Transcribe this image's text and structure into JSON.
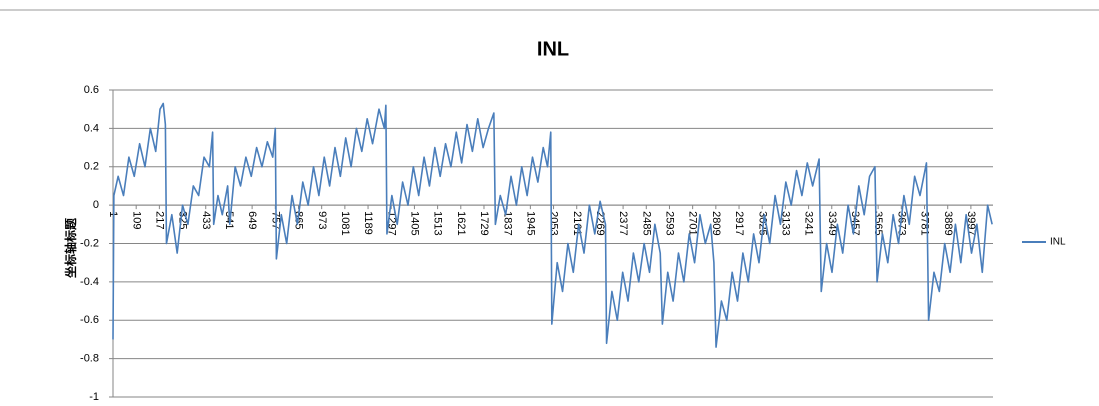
{
  "chart_data": {
    "type": "line",
    "title": "INL",
    "y_label": "坐标轴标题",
    "x": [
      1,
      5,
      25,
      50,
      75,
      100,
      125,
      150,
      175,
      200,
      220,
      235,
      245,
      250,
      275,
      300,
      325,
      350,
      375,
      400,
      425,
      450,
      465,
      470,
      490,
      510,
      535,
      545,
      570,
      595,
      620,
      645,
      670,
      695,
      720,
      745,
      757,
      762,
      785,
      810,
      835,
      860,
      885,
      910,
      935,
      960,
      985,
      1010,
      1035,
      1060,
      1085,
      1110,
      1135,
      1160,
      1185,
      1210,
      1240,
      1265,
      1272,
      1277,
      1300,
      1325,
      1350,
      1375,
      1400,
      1425,
      1450,
      1475,
      1500,
      1525,
      1550,
      1575,
      1600,
      1625,
      1650,
      1675,
      1700,
      1725,
      1750,
      1775,
      1782,
      1805,
      1830,
      1855,
      1880,
      1905,
      1930,
      1955,
      1980,
      2005,
      2025,
      2040,
      2045,
      2070,
      2095,
      2120,
      2145,
      2170,
      2195,
      2220,
      2245,
      2270,
      2295,
      2300,
      2325,
      2350,
      2375,
      2400,
      2425,
      2450,
      2475,
      2500,
      2525,
      2550,
      2560,
      2585,
      2610,
      2635,
      2660,
      2685,
      2710,
      2735,
      2760,
      2785,
      2800,
      2810,
      2835,
      2860,
      2885,
      2910,
      2935,
      2960,
      2985,
      3010,
      3035,
      3060,
      3085,
      3110,
      3135,
      3160,
      3185,
      3210,
      3235,
      3260,
      3290,
      3300,
      3325,
      3350,
      3375,
      3400,
      3425,
      3450,
      3475,
      3500,
      3525,
      3550,
      3560,
      3585,
      3610,
      3635,
      3660,
      3685,
      3710,
      3735,
      3760,
      3790,
      3800,
      3825,
      3850,
      3875,
      3900,
      3925,
      3950,
      3975,
      4000,
      4025,
      4050,
      4075,
      4096
    ],
    "series": [
      {
        "name": "INL",
        "color": "#4a7ebb",
        "values": [
          -0.7,
          0.05,
          0.15,
          0.05,
          0.25,
          0.15,
          0.32,
          0.2,
          0.4,
          0.28,
          0.5,
          0.53,
          0.42,
          -0.2,
          -0.05,
          -0.25,
          0.0,
          -0.1,
          0.1,
          0.05,
          0.25,
          0.2,
          0.38,
          -0.1,
          0.05,
          -0.05,
          0.1,
          -0.1,
          0.2,
          0.1,
          0.25,
          0.15,
          0.3,
          0.2,
          0.33,
          0.25,
          0.4,
          -0.28,
          -0.05,
          -0.2,
          0.05,
          -0.1,
          0.12,
          0.0,
          0.2,
          0.05,
          0.25,
          0.1,
          0.3,
          0.15,
          0.35,
          0.2,
          0.4,
          0.28,
          0.45,
          0.32,
          0.5,
          0.4,
          0.52,
          -0.15,
          0.05,
          -0.1,
          0.12,
          0.0,
          0.2,
          0.05,
          0.25,
          0.1,
          0.3,
          0.15,
          0.32,
          0.2,
          0.38,
          0.22,
          0.42,
          0.28,
          0.45,
          0.3,
          0.4,
          0.48,
          -0.1,
          0.05,
          -0.05,
          0.15,
          0.0,
          0.2,
          0.05,
          0.25,
          0.12,
          0.3,
          0.2,
          0.38,
          -0.62,
          -0.3,
          -0.45,
          -0.2,
          -0.35,
          -0.1,
          -0.25,
          0.0,
          -0.15,
          0.02,
          -0.1,
          -0.72,
          -0.45,
          -0.6,
          -0.35,
          -0.5,
          -0.25,
          -0.4,
          -0.2,
          -0.35,
          -0.1,
          -0.25,
          -0.62,
          -0.35,
          -0.5,
          -0.25,
          -0.4,
          -0.15,
          -0.3,
          -0.05,
          -0.2,
          -0.1,
          -0.3,
          -0.74,
          -0.5,
          -0.6,
          -0.35,
          -0.5,
          -0.25,
          -0.4,
          -0.15,
          -0.3,
          -0.05,
          -0.2,
          0.05,
          -0.1,
          0.12,
          0.0,
          0.18,
          0.05,
          0.22,
          0.1,
          0.24,
          -0.45,
          -0.2,
          -0.35,
          -0.1,
          -0.25,
          0.0,
          -0.15,
          0.1,
          -0.05,
          0.15,
          0.2,
          -0.4,
          -0.15,
          -0.3,
          -0.05,
          -0.2,
          0.05,
          -0.1,
          0.15,
          0.05,
          0.22,
          -0.6,
          -0.35,
          -0.45,
          -0.2,
          -0.35,
          -0.1,
          -0.3,
          -0.05,
          -0.25,
          -0.1,
          -0.35,
          0.0,
          -0.1
        ]
      }
    ],
    "xlim": [
      1,
      4100
    ],
    "xticks": [
      1,
      109,
      217,
      325,
      433,
      541,
      649,
      757,
      865,
      973,
      1081,
      1189,
      1297,
      1405,
      1513,
      1621,
      1729,
      1837,
      1945,
      2053,
      2161,
      2269,
      2377,
      2485,
      2593,
      2701,
      2809,
      2917,
      3025,
      3133,
      3241,
      3349,
      3457,
      3565,
      3673,
      3781,
      3889,
      3997
    ],
    "ylim": [
      -1,
      0.6
    ],
    "yticks": [
      -1,
      -0.8,
      -0.6,
      -0.4,
      -0.2,
      0,
      0.2,
      0.4,
      0.6
    ],
    "grid": true,
    "legend": "right"
  }
}
